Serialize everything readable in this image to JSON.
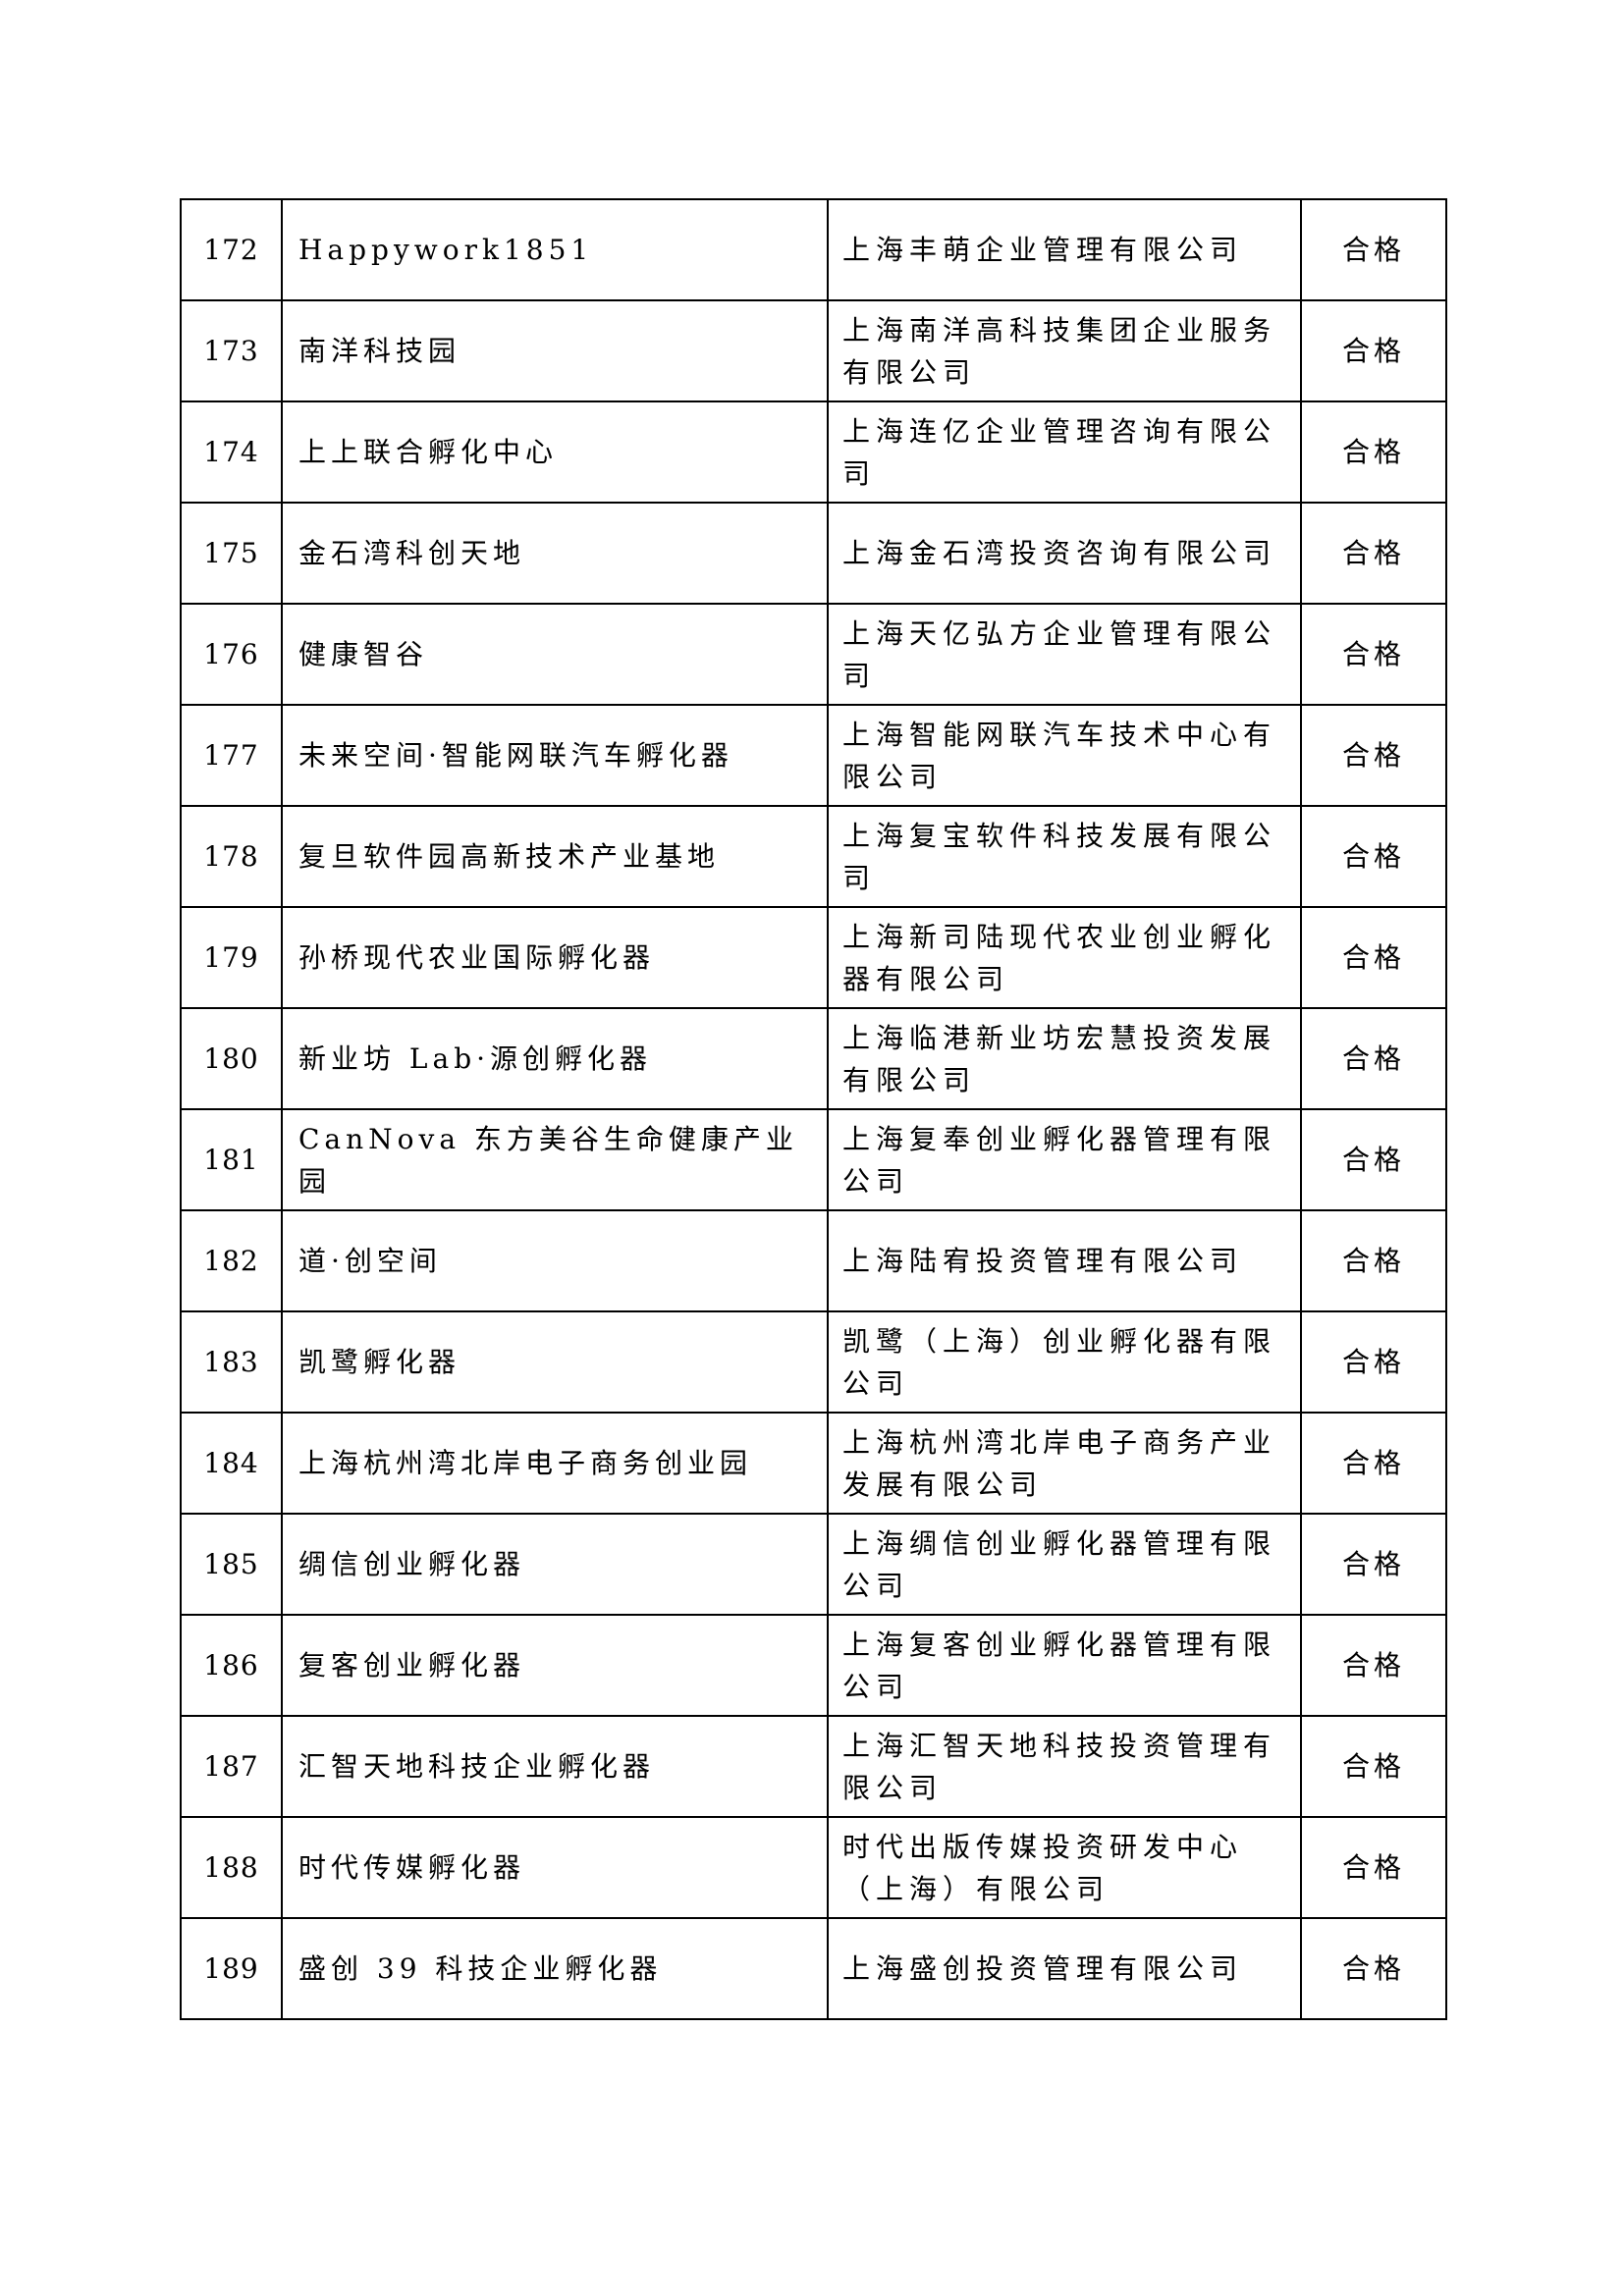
{
  "table": {
    "rows": [
      {
        "no": "172",
        "name": "Happywork1851",
        "org": "上海丰萌企业管理有限公司",
        "result": "合格"
      },
      {
        "no": "173",
        "name": "南洋科技园",
        "org": "上海南洋高科技集团企业服务有限公司",
        "result": "合格"
      },
      {
        "no": "174",
        "name": "上上联合孵化中心",
        "org": "上海连亿企业管理咨询有限公司",
        "result": "合格"
      },
      {
        "no": "175",
        "name": "金石湾科创天地",
        "org": "上海金石湾投资咨询有限公司",
        "result": "合格"
      },
      {
        "no": "176",
        "name": "健康智谷",
        "org": "上海天亿弘方企业管理有限公司",
        "result": "合格"
      },
      {
        "no": "177",
        "name": "未来空间·智能网联汽车孵化器",
        "org": "上海智能网联汽车技术中心有限公司",
        "result": "合格"
      },
      {
        "no": "178",
        "name": "复旦软件园高新技术产业基地",
        "org": "上海复宝软件科技发展有限公司",
        "result": "合格"
      },
      {
        "no": "179",
        "name": "孙桥现代农业国际孵化器",
        "org": "上海新司陆现代农业创业孵化器有限公司",
        "result": "合格"
      },
      {
        "no": "180",
        "name": "新业坊 Lab·源创孵化器",
        "org": "上海临港新业坊宏慧投资发展有限公司",
        "result": "合格"
      },
      {
        "no": "181",
        "name": "CanNova 东方美谷生命健康产业园",
        "org": "上海复奉创业孵化器管理有限公司",
        "result": "合格"
      },
      {
        "no": "182",
        "name": "道·创空间",
        "org": "上海陆宥投资管理有限公司",
        "result": "合格"
      },
      {
        "no": "183",
        "name": "凯鹭孵化器",
        "org": "凯鹭（上海）创业孵化器有限公司",
        "result": "合格"
      },
      {
        "no": "184",
        "name": "上海杭州湾北岸电子商务创业园",
        "org": "上海杭州湾北岸电子商务产业发展有限公司",
        "result": "合格"
      },
      {
        "no": "185",
        "name": "绸信创业孵化器",
        "org": "上海绸信创业孵化器管理有限公司",
        "result": "合格"
      },
      {
        "no": "186",
        "name": "复客创业孵化器",
        "org": "上海复客创业孵化器管理有限公司",
        "result": "合格"
      },
      {
        "no": "187",
        "name": "汇智天地科技企业孵化器",
        "org": "上海汇智天地科技投资管理有限公司",
        "result": "合格"
      },
      {
        "no": "188",
        "name": "时代传媒孵化器",
        "org": "时代出版传媒投资研发中心（上海）有限公司",
        "result": "合格"
      },
      {
        "no": "189",
        "name": "盛创 39 科技企业孵化器",
        "org": "上海盛创投资管理有限公司",
        "result": "合格"
      }
    ]
  }
}
